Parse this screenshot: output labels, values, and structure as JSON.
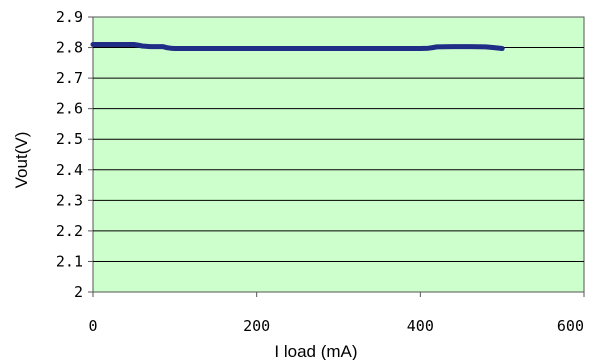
{
  "chart_data": {
    "type": "line",
    "title": "",
    "xlabel": "I load (mA)",
    "ylabel": "Vout(V)",
    "xlim": [
      0,
      600
    ],
    "ylim": [
      2.0,
      2.9
    ],
    "x_ticks": [
      0,
      200,
      400,
      600
    ],
    "x_tick_labels": [
      "0",
      "200",
      "400",
      "600"
    ],
    "y_ticks": [
      2.0,
      2.1,
      2.2,
      2.3,
      2.4,
      2.5,
      2.6,
      2.7,
      2.8,
      2.9
    ],
    "y_tick_labels": [
      "2",
      "2.1",
      "2.2",
      "2.3",
      "2.4",
      "2.5",
      "2.6",
      "2.7",
      "2.8",
      "2.9"
    ],
    "grid": "horizontal",
    "plot_background": "#ccffcc",
    "grid_color": "#000000",
    "series": [
      {
        "color": "#1f2d86",
        "x": [
          0,
          10,
          25,
          50,
          55,
          60,
          70,
          85,
          90,
          95,
          100,
          150,
          200,
          250,
          300,
          350,
          400,
          410,
          415,
          420,
          440,
          460,
          480,
          490,
          500
        ],
        "y": [
          2.81,
          2.81,
          2.81,
          2.81,
          2.808,
          2.805,
          2.803,
          2.803,
          2.8,
          2.798,
          2.797,
          2.797,
          2.797,
          2.797,
          2.797,
          2.797,
          2.797,
          2.798,
          2.8,
          2.802,
          2.803,
          2.803,
          2.802,
          2.8,
          2.797
        ]
      }
    ]
  }
}
